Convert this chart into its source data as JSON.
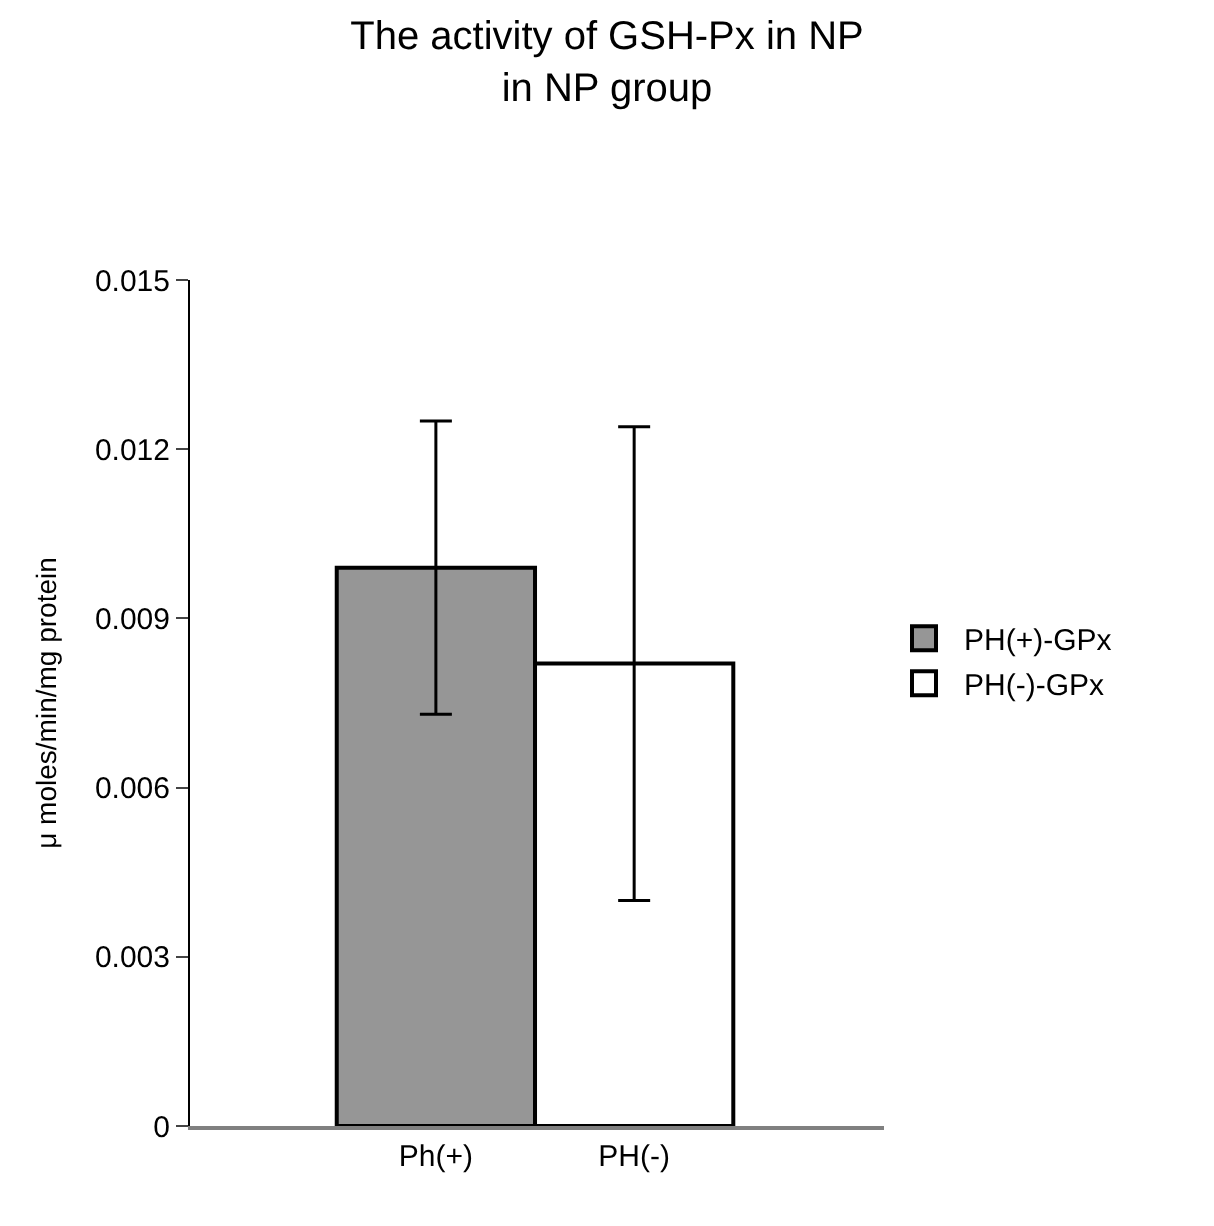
{
  "chart_data": {
    "type": "bar",
    "title": "The activity of GSH-Px in NP\nin NP group",
    "ylabel": "μ moles/min/mg protein",
    "categories": [
      "Ph(+)",
      "PH(-)"
    ],
    "series": [
      {
        "name": "PH(+)-GPx",
        "color": "#969696",
        "values": [
          0.0099,
          null
        ],
        "errors": [
          0.0026,
          null
        ]
      },
      {
        "name": "PH(-)-GPx",
        "color": "#ffffff",
        "values": [
          null,
          0.0082
        ],
        "errors": [
          null,
          0.0042
        ]
      }
    ],
    "ylim": [
      0,
      0.015
    ],
    "yticks": [
      {
        "value": 0,
        "label": "0"
      },
      0.003,
      0.006,
      0.009,
      0.012,
      0.015
    ],
    "legend": "right"
  }
}
